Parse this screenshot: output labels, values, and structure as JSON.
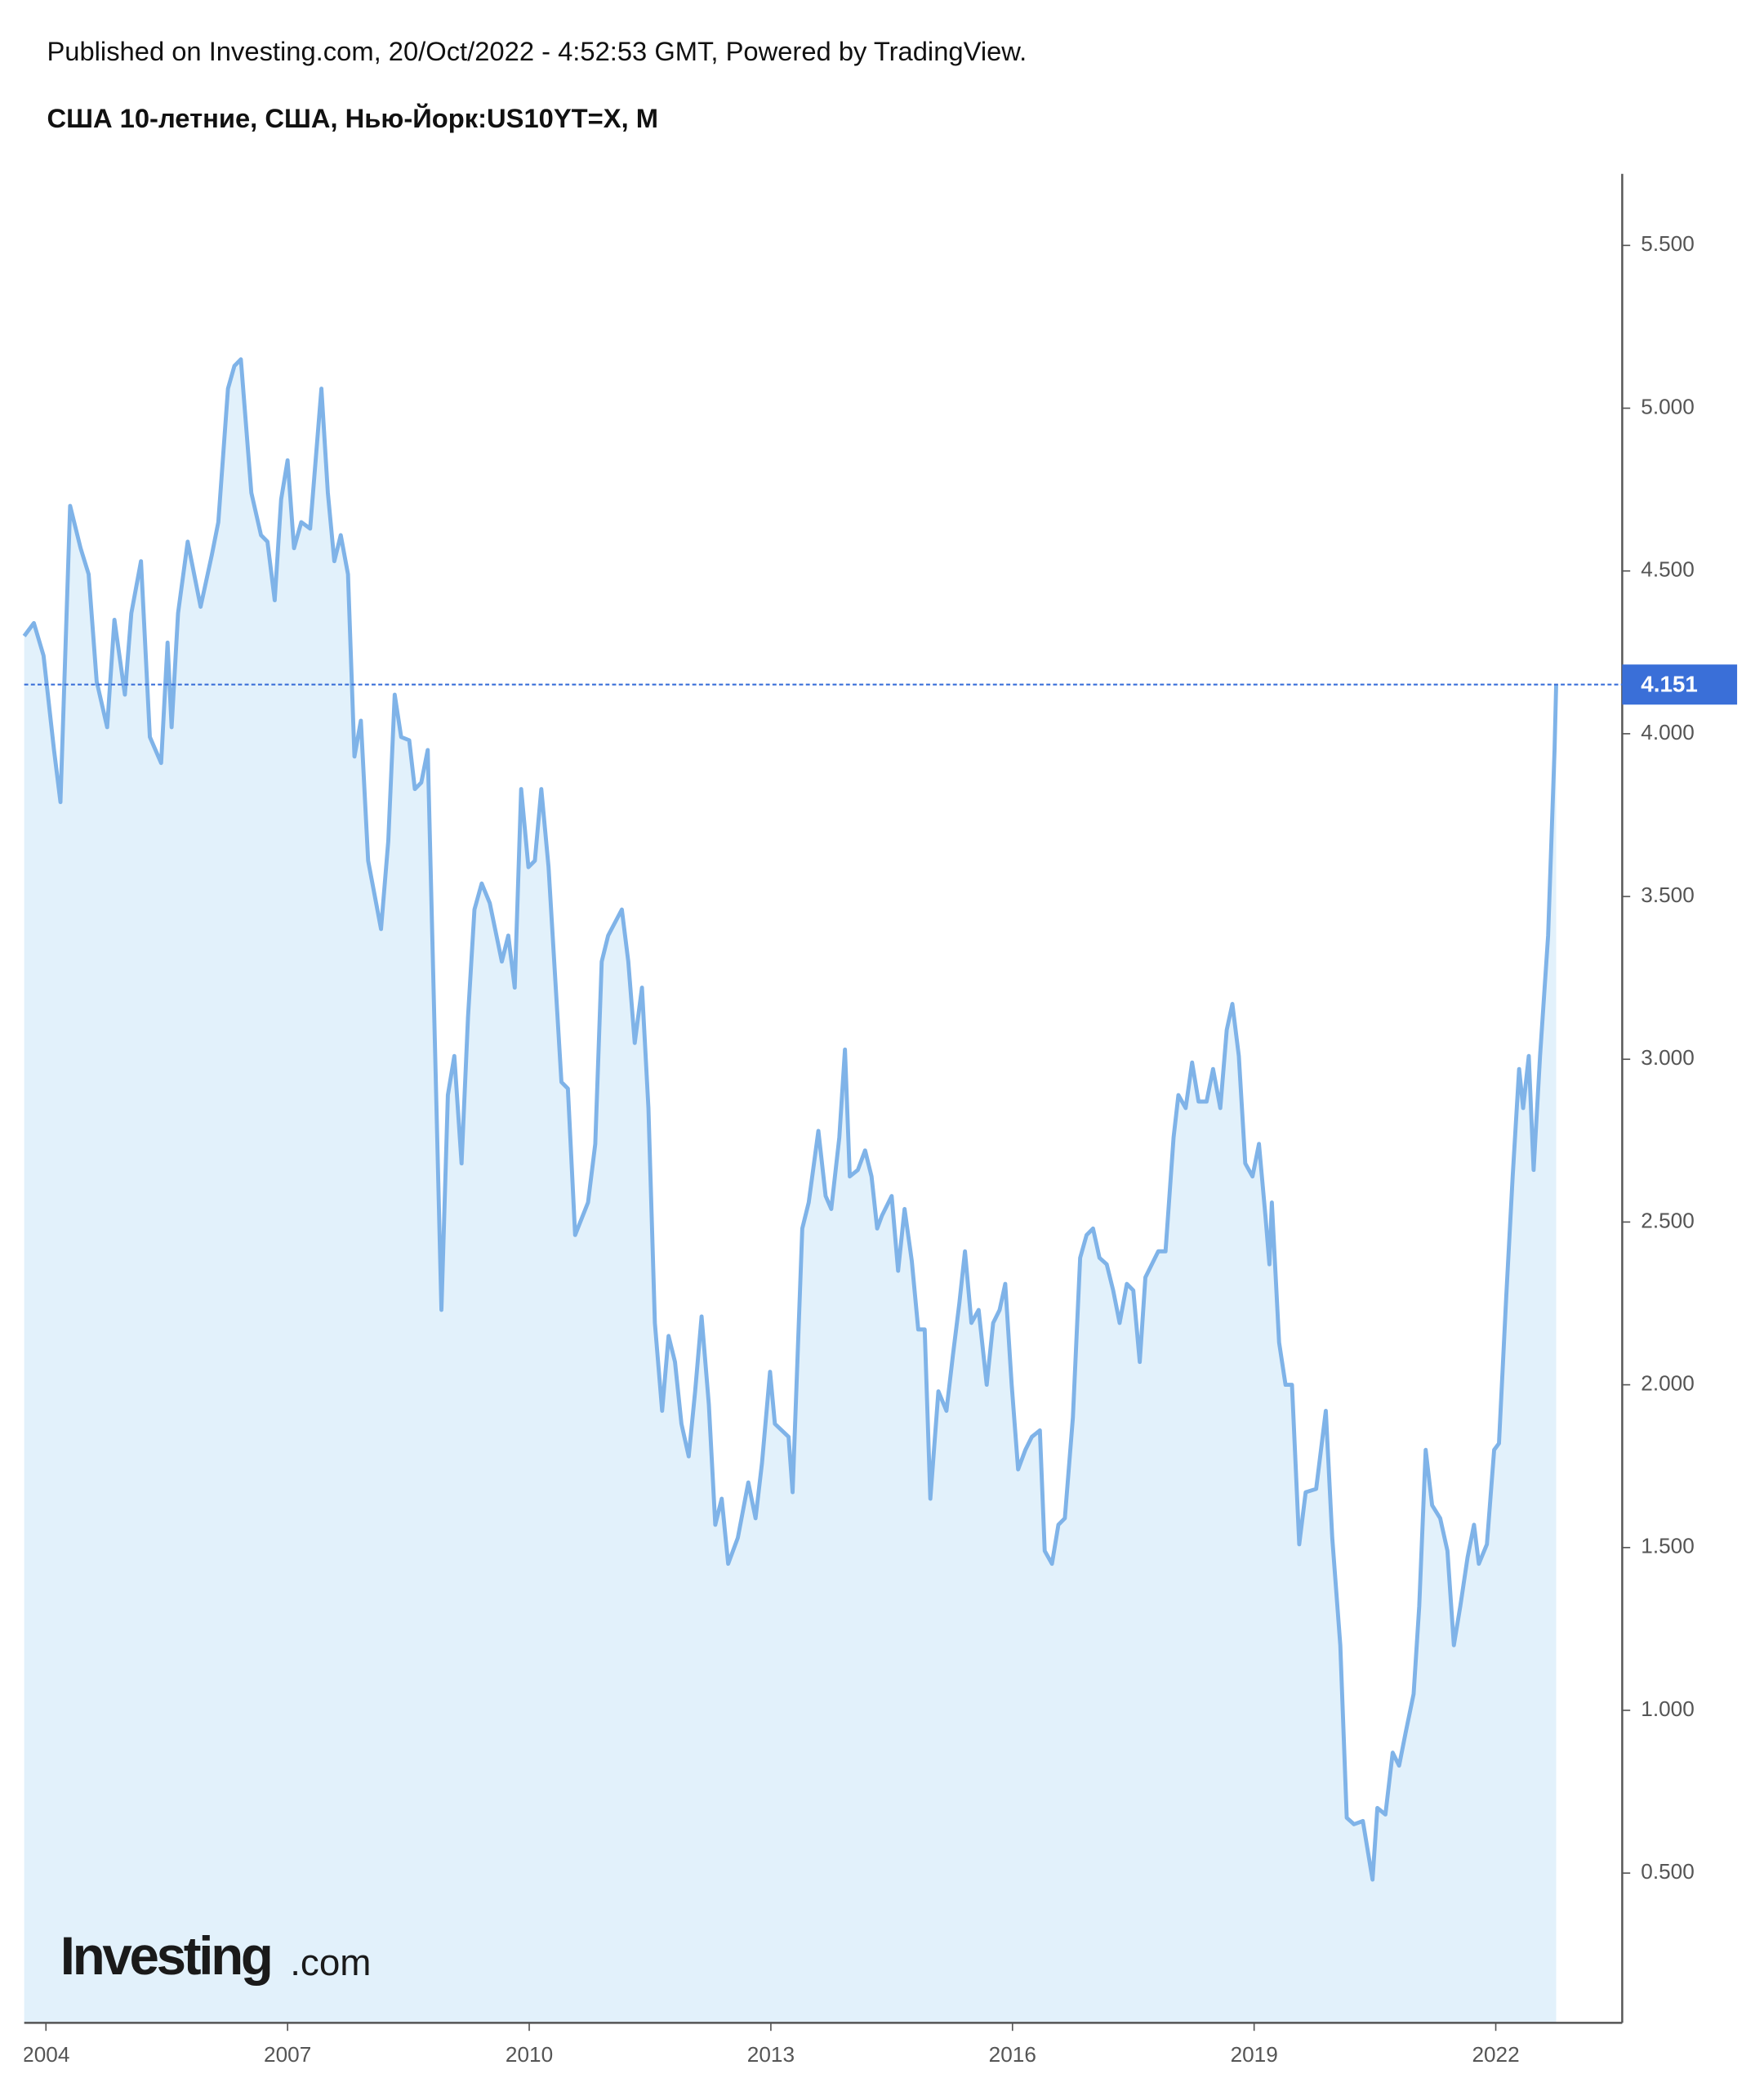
{
  "header": "Published on Investing.com, 20/Oct/2022 - 4:52:53 GMT, Powered by TradingView.",
  "logo": {
    "brand": "Investing",
    "suffix": ".com"
  },
  "chart_data": {
    "type": "area",
    "title": "США 10-летние, США, Нью-Йорк:US10YT=X, M",
    "color": "#7fb3e8",
    "fill": "#e2f1fb",
    "last_value_color": "#3a6fd8",
    "xlim": [
      2003.73,
      2023.57
    ],
    "xticks": [
      2004,
      2007,
      2010,
      2013,
      2016,
      2019,
      2022
    ],
    "ylim": [
      0.04,
      5.72
    ],
    "yticks": [
      {
        "value": 0.5,
        "label": "0.500"
      },
      {
        "value": 1,
        "label": "1.000"
      },
      {
        "value": 1.5,
        "label": "1.500"
      },
      {
        "value": 2,
        "label": "2.000"
      },
      {
        "value": 2.5,
        "label": "2.500"
      },
      {
        "value": 3,
        "label": "3.000"
      },
      {
        "value": 3.5,
        "label": "3.500"
      },
      {
        "value": 4,
        "label": "4.000"
      },
      {
        "value": 4.5,
        "label": "4.500"
      },
      {
        "value": 5,
        "label": "5.000"
      },
      {
        "value": 5.5,
        "label": "5.500"
      }
    ],
    "x": [
      2003.73,
      2003.85,
      2003.97,
      2004.1,
      2004.18,
      2004.3,
      2004.43,
      2004.53,
      2004.63,
      2004.76,
      2004.85,
      2004.98,
      2005.06,
      2005.18,
      2005.29,
      2005.43,
      2005.51,
      2005.56,
      2005.64,
      2005.76,
      2005.92,
      2006.06,
      2006.14,
      2006.26,
      2006.34,
      2006.42,
      2006.55,
      2006.67,
      2006.75,
      2006.84,
      2006.92,
      2007.0,
      2007.08,
      2007.17,
      2007.28,
      2007.42,
      2007.5,
      2007.58,
      2007.66,
      2007.75,
      2007.83,
      2007.91,
      2008.0,
      2008.16,
      2008.25,
      2008.33,
      2008.41,
      2008.51,
      2008.58,
      2008.66,
      2008.74,
      2008.91,
      2008.99,
      2009.07,
      2009.16,
      2009.24,
      2009.32,
      2009.41,
      2009.51,
      2009.66,
      2009.74,
      2009.82,
      2009.9,
      2009.99,
      2010.07,
      2010.15,
      2010.24,
      2010.4,
      2010.48,
      2010.57,
      2010.73,
      2010.82,
      2010.9,
      2010.98,
      2011.15,
      2011.23,
      2011.31,
      2011.4,
      2011.48,
      2011.56,
      2011.65,
      2011.73,
      2011.81,
      2011.89,
      2011.98,
      2012.06,
      2012.14,
      2012.23,
      2012.31,
      2012.39,
      2012.47,
      2012.59,
      2012.72,
      2012.81,
      2012.89,
      2012.99,
      2013.05,
      2013.22,
      2013.27,
      2013.39,
      2013.47,
      2013.59,
      2013.68,
      2013.75,
      2013.85,
      2013.92,
      2013.98,
      2014.08,
      2014.17,
      2014.25,
      2014.32,
      2014.38,
      2014.5,
      2014.58,
      2014.66,
      2014.75,
      2014.83,
      2014.91,
      2014.98,
      2015.08,
      2015.18,
      2015.26,
      2015.34,
      2015.41,
      2015.49,
      2015.58,
      2015.68,
      2015.76,
      2015.84,
      2015.91,
      2015.99,
      2016.07,
      2016.16,
      2016.24,
      2016.34,
      2016.4,
      2016.49,
      2016.57,
      2016.65,
      2016.75,
      2016.84,
      2016.92,
      2017.0,
      2017.08,
      2017.17,
      2017.25,
      2017.33,
      2017.42,
      2017.5,
      2017.58,
      2017.65,
      2017.73,
      2017.81,
      2017.9,
      2018.0,
      2018.06,
      2018.15,
      2018.23,
      2018.31,
      2018.41,
      2018.49,
      2018.58,
      2018.66,
      2018.73,
      2018.81,
      2018.89,
      2018.98,
      2019.06,
      2019.14,
      2019.19,
      2019.22,
      2019.31,
      2019.39,
      2019.47,
      2019.56,
      2019.64,
      2019.77,
      2019.89,
      2019.97,
      2020.07,
      2020.15,
      2020.24,
      2020.35,
      2020.47,
      2020.53,
      2020.63,
      2020.72,
      2020.8,
      2020.88,
      2020.98,
      2021.05,
      2021.13,
      2021.21,
      2021.31,
      2021.4,
      2021.48,
      2021.56,
      2021.65,
      2021.73,
      2021.79,
      2021.89,
      2021.98,
      2022.04,
      2022.13,
      2022.21,
      2022.29,
      2022.34,
      2022.41,
      2022.47,
      2022.55,
      2022.65,
      2022.73,
      2022.75
    ],
    "values": [
      4.3,
      4.34,
      4.24,
      3.95,
      3.79,
      4.7,
      4.57,
      4.49,
      4.16,
      4.02,
      4.35,
      4.12,
      4.37,
      4.53,
      3.99,
      3.91,
      4.28,
      4.02,
      4.37,
      4.59,
      4.39,
      4.55,
      4.65,
      5.06,
      5.13,
      5.15,
      4.74,
      4.61,
      4.59,
      4.41,
      4.72,
      4.84,
      4.57,
      4.65,
      4.63,
      5.06,
      4.74,
      4.53,
      4.61,
      4.49,
      3.93,
      4.04,
      3.61,
      3.4,
      3.67,
      4.12,
      3.99,
      3.98,
      3.83,
      3.85,
      3.95,
      2.23,
      2.89,
      3.01,
      2.68,
      3.13,
      3.46,
      3.54,
      3.48,
      3.3,
      3.38,
      3.22,
      3.83,
      3.59,
      3.61,
      3.83,
      3.59,
      2.93,
      2.91,
      2.46,
      2.56,
      2.74,
      3.3,
      3.38,
      3.46,
      3.3,
      3.05,
      3.22,
      2.85,
      2.19,
      1.92,
      2.15,
      2.07,
      1.88,
      1.78,
      1.98,
      2.21,
      1.94,
      1.57,
      1.65,
      1.45,
      1.53,
      1.7,
      1.59,
      1.76,
      2.04,
      1.88,
      1.84,
      1.67,
      2.48,
      2.56,
      2.78,
      2.58,
      2.54,
      2.76,
      3.03,
      2.64,
      2.66,
      2.72,
      2.64,
      2.48,
      2.52,
      2.58,
      2.35,
      2.54,
      2.38,
      2.17,
      2.17,
      1.65,
      1.98,
      1.92,
      2.09,
      2.25,
      2.41,
      2.19,
      2.23,
      2.0,
      2.19,
      2.23,
      2.31,
      2.0,
      1.74,
      1.8,
      1.84,
      1.86,
      1.49,
      1.45,
      1.57,
      1.59,
      1.9,
      2.39,
      2.46,
      2.48,
      2.39,
      2.37,
      2.29,
      2.19,
      2.31,
      2.29,
      2.07,
      2.33,
      2.37,
      2.41,
      2.41,
      2.76,
      2.89,
      2.85,
      2.99,
      2.87,
      2.87,
      2.97,
      2.85,
      3.09,
      3.17,
      3.01,
      2.68,
      2.64,
      2.74,
      2.52,
      2.37,
      2.56,
      2.13,
      2.0,
      2.0,
      1.51,
      1.67,
      1.68,
      1.92,
      1.53,
      1.2,
      0.67,
      0.65,
      0.66,
      0.48,
      0.7,
      0.68,
      0.87,
      0.83,
      0.93,
      1.05,
      1.32,
      1.8,
      1.63,
      1.59,
      1.49,
      1.2,
      1.32,
      1.47,
      1.57,
      1.45,
      1.51,
      1.8,
      1.82,
      2.27,
      2.64,
      2.97,
      2.85,
      3.01,
      2.66,
      3.01,
      3.38,
      3.95,
      4.151
    ]
  }
}
